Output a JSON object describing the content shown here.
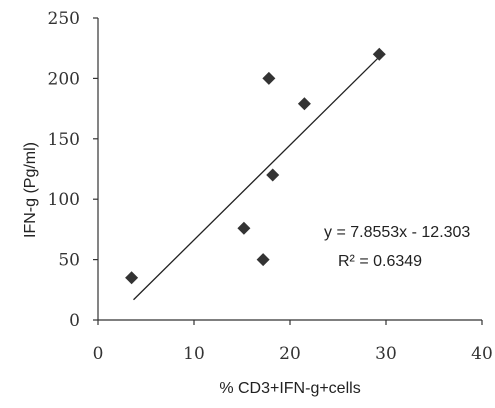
{
  "chart_data": {
    "type": "scatter",
    "title": "",
    "xlabel": "% CD3+IFN-g+cells",
    "ylabel": "IFN-g (Pg/ml)",
    "xlim": [
      0,
      40
    ],
    "ylim": [
      0,
      250
    ],
    "x_ticks": [
      0,
      10,
      20,
      30,
      40
    ],
    "y_ticks": [
      0,
      50,
      100,
      150,
      200,
      250
    ],
    "grid": false,
    "legend": "none",
    "marker": "diamond",
    "points": [
      {
        "x": 3.5,
        "y": 35
      },
      {
        "x": 15.2,
        "y": 76
      },
      {
        "x": 17.2,
        "y": 50
      },
      {
        "x": 17.8,
        "y": 200
      },
      {
        "x": 18.2,
        "y": 120
      },
      {
        "x": 21.5,
        "y": 179
      },
      {
        "x": 29.3,
        "y": 220
      }
    ],
    "trendline": {
      "slope": 7.8553,
      "intercept": -12.303,
      "x_range": [
        3.7,
        29.5
      ]
    },
    "annotations": {
      "equation": "y = 7.8553x - 12.303",
      "r_squared": "R² = 0.6349"
    }
  }
}
